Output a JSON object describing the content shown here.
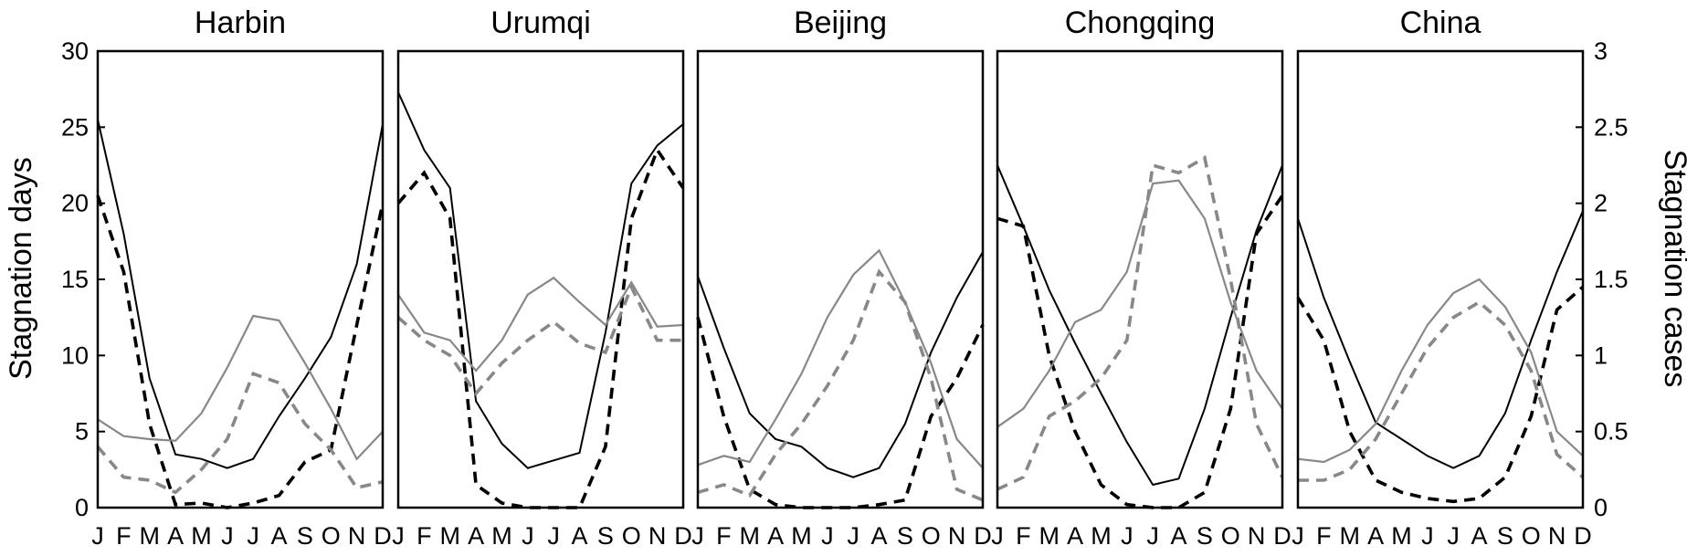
{
  "figure": {
    "left_axis_label": "Stagnation days",
    "right_axis_label": "Stagnation cases",
    "left_ticks": [
      "0",
      "5",
      "10",
      "15",
      "20",
      "25",
      "30"
    ],
    "right_ticks": [
      "0",
      "0.5",
      "1",
      "1.5",
      "2",
      "2.5",
      "3"
    ],
    "month_labels": [
      "J",
      "F",
      "M",
      "A",
      "M",
      "J",
      "J",
      "A",
      "S",
      "O",
      "N",
      "D"
    ]
  },
  "chart_data": [
    {
      "type": "line",
      "title": "Harbin",
      "categories": [
        "J",
        "F",
        "M",
        "A",
        "M",
        "J",
        "J",
        "A",
        "S",
        "O",
        "N",
        "D"
      ],
      "ylim": [
        0,
        30
      ],
      "y2lim": [
        0,
        3
      ],
      "series": [
        {
          "axis": "left",
          "style": "black-solid",
          "values": [
            25.5,
            18,
            8.5,
            3.5,
            3.2,
            2.6,
            3.2,
            6,
            8.5,
            11.2,
            16,
            25.2
          ]
        },
        {
          "axis": "right",
          "style": "black-dash",
          "values": [
            2.05,
            1.55,
            0.55,
            0.02,
            0.03,
            0.0,
            0.03,
            0.08,
            0.3,
            0.38,
            1.2,
            2.0
          ]
        },
        {
          "axis": "left",
          "style": "gray-solid",
          "values": [
            5.8,
            4.7,
            4.5,
            4.4,
            6.2,
            9.2,
            12.6,
            12.3,
            9.5,
            6.5,
            3.2,
            5.0
          ]
        },
        {
          "axis": "right",
          "style": "gray-dash",
          "values": [
            0.4,
            0.2,
            0.18,
            0.1,
            0.25,
            0.45,
            0.88,
            0.82,
            0.55,
            0.38,
            0.13,
            0.17
          ]
        }
      ]
    },
    {
      "type": "line",
      "title": "Urumqi",
      "categories": [
        "J",
        "F",
        "M",
        "A",
        "M",
        "J",
        "J",
        "A",
        "S",
        "O",
        "N",
        "D"
      ],
      "ylim": [
        0,
        30
      ],
      "y2lim": [
        0,
        3
      ],
      "series": [
        {
          "axis": "left",
          "style": "black-solid",
          "values": [
            27.3,
            23.5,
            21,
            7,
            4.2,
            2.6,
            3.1,
            3.6,
            11.5,
            21.3,
            23.8,
            25.2
          ]
        },
        {
          "axis": "right",
          "style": "black-dash",
          "values": [
            2.0,
            2.2,
            1.9,
            0.15,
            0.03,
            0.0,
            0.0,
            0.0,
            0.4,
            1.9,
            2.35,
            2.1
          ]
        },
        {
          "axis": "left",
          "style": "gray-solid",
          "values": [
            14,
            11.5,
            11,
            9,
            11,
            14,
            15.1,
            13.5,
            12,
            14.8,
            11.9,
            12
          ]
        },
        {
          "axis": "right",
          "style": "gray-dash",
          "values": [
            1.25,
            1.1,
            1.0,
            0.75,
            0.95,
            1.1,
            1.22,
            1.08,
            1.02,
            1.45,
            1.1,
            1.1
          ]
        }
      ]
    },
    {
      "type": "line",
      "title": "Beijing",
      "categories": [
        "J",
        "F",
        "M",
        "A",
        "M",
        "J",
        "J",
        "A",
        "S",
        "O",
        "N",
        "D"
      ],
      "ylim": [
        0,
        30
      ],
      "y2lim": [
        0,
        3
      ],
      "series": [
        {
          "axis": "left",
          "style": "black-solid",
          "values": [
            15.2,
            10.5,
            6.2,
            4.5,
            4.0,
            2.6,
            2.0,
            2.6,
            5.5,
            10.2,
            13.8,
            16.8
          ]
        },
        {
          "axis": "right",
          "style": "black-dash",
          "values": [
            1.25,
            0.6,
            0.12,
            0.02,
            0.0,
            0.0,
            0.0,
            0.02,
            0.05,
            0.6,
            0.85,
            1.2
          ]
        },
        {
          "axis": "left",
          "style": "gray-solid",
          "values": [
            2.8,
            3.4,
            3.0,
            5.8,
            8.8,
            12.5,
            15.3,
            16.9,
            13.5,
            9.5,
            4.5,
            2.6
          ]
        },
        {
          "axis": "right",
          "style": "gray-dash",
          "values": [
            0.1,
            0.15,
            0.08,
            0.35,
            0.55,
            0.8,
            1.1,
            1.55,
            1.35,
            0.85,
            0.12,
            0.05
          ]
        }
      ]
    },
    {
      "type": "line",
      "title": "Chongqing",
      "categories": [
        "J",
        "F",
        "M",
        "A",
        "M",
        "J",
        "J",
        "A",
        "S",
        "O",
        "N",
        "D"
      ],
      "ylim": [
        0,
        30
      ],
      "y2lim": [
        0,
        3
      ],
      "series": [
        {
          "axis": "left",
          "style": "black-solid",
          "values": [
            22.5,
            18.5,
            14.3,
            10.8,
            7.5,
            4.3,
            1.5,
            1.9,
            6.5,
            12.5,
            18.2,
            22.5
          ]
        },
        {
          "axis": "right",
          "style": "black-dash",
          "values": [
            1.9,
            1.85,
            1.0,
            0.5,
            0.15,
            0.02,
            0.0,
            0.0,
            0.1,
            0.65,
            1.8,
            2.05
          ]
        },
        {
          "axis": "left",
          "style": "gray-solid",
          "values": [
            5.3,
            6.5,
            9.0,
            12.2,
            13.0,
            15.5,
            21.3,
            21.5,
            19.0,
            13.5,
            9.0,
            6.5
          ]
        },
        {
          "axis": "right",
          "style": "gray-dash",
          "values": [
            0.12,
            0.2,
            0.6,
            0.7,
            0.85,
            1.1,
            2.25,
            2.2,
            2.3,
            1.5,
            0.55,
            0.2
          ]
        }
      ]
    },
    {
      "type": "line",
      "title": "China",
      "categories": [
        "J",
        "F",
        "M",
        "A",
        "M",
        "J",
        "J",
        "A",
        "S",
        "O",
        "N",
        "D"
      ],
      "ylim": [
        0,
        30
      ],
      "y2lim": [
        0,
        3
      ],
      "series": [
        {
          "axis": "left",
          "style": "black-solid",
          "values": [
            19,
            13.8,
            9.6,
            5.6,
            4.5,
            3.4,
            2.6,
            3.4,
            6.2,
            11,
            15.5,
            19.5
          ]
        },
        {
          "axis": "right",
          "style": "black-dash",
          "values": [
            1.38,
            1.1,
            0.5,
            0.18,
            0.1,
            0.06,
            0.04,
            0.06,
            0.2,
            0.6,
            1.3,
            1.45
          ]
        },
        {
          "axis": "left",
          "style": "gray-solid",
          "values": [
            3.2,
            3.0,
            3.8,
            5.5,
            9.0,
            12.0,
            14.1,
            15.0,
            13.2,
            10.2,
            5.0,
            3.4
          ]
        },
        {
          "axis": "right",
          "style": "gray-dash",
          "values": [
            0.18,
            0.18,
            0.25,
            0.45,
            0.75,
            1.05,
            1.25,
            1.35,
            1.2,
            0.9,
            0.35,
            0.2
          ]
        }
      ]
    }
  ]
}
